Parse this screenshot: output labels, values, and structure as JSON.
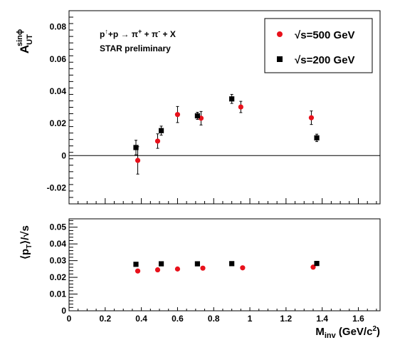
{
  "colors": {
    "s500": "#e8111b",
    "s200": "#000000",
    "axis": "#000000"
  },
  "chart_data": [
    {
      "type": "scatter",
      "ylabel": "A_UT^sinϕ",
      "ylim": [
        -0.03,
        0.09
      ],
      "xlim": [
        0,
        1.72
      ],
      "yticks_labeled": [
        "-0.02",
        "0",
        "0.02",
        "0.04",
        "0.06",
        "0.08"
      ],
      "yticks": [
        -0.02,
        0,
        0.02,
        0.04,
        0.06,
        0.08
      ],
      "zero_line": true,
      "grid": false,
      "annotations": {
        "reaction": "p↑+p → π⁺ + π⁻ + X",
        "status": "STAR preliminary"
      },
      "legend": {
        "position": "top-right",
        "entries": [
          {
            "label": "√s=500 GeV",
            "marker": "circle",
            "series": "s500"
          },
          {
            "label": "√s=200 GeV",
            "marker": "square",
            "series": "s200"
          }
        ]
      },
      "series": [
        {
          "name": "√s=500 GeV",
          "key": "s500",
          "marker": "circle",
          "points": [
            {
              "x": 0.38,
              "y": -0.003,
              "err": 0.0085
            },
            {
              "x": 0.49,
              "y": 0.009,
              "err": 0.0045
            },
            {
              "x": 0.6,
              "y": 0.0255,
              "err": 0.005
            },
            {
              "x": 0.73,
              "y": 0.0232,
              "err": 0.0042
            },
            {
              "x": 0.95,
              "y": 0.0302,
              "err": 0.0035
            },
            {
              "x": 1.34,
              "y": 0.0235,
              "err": 0.0042
            }
          ]
        },
        {
          "name": "√s=200 GeV",
          "key": "s200",
          "marker": "square",
          "points": [
            {
              "x": 0.37,
              "y": 0.005,
              "err": 0.0045
            },
            {
              "x": 0.51,
              "y": 0.0155,
              "err": 0.0028
            },
            {
              "x": 0.71,
              "y": 0.0247,
              "err": 0.0022
            },
            {
              "x": 0.9,
              "y": 0.0352,
              "err": 0.0028
            },
            {
              "x": 1.37,
              "y": 0.011,
              "err": 0.0023
            }
          ]
        }
      ]
    },
    {
      "type": "scatter",
      "ylabel": "⟨p_T⟩/√s",
      "xlabel": "M_inv (GeV/c²)",
      "ylim": [
        0,
        0.055
      ],
      "xlim": [
        0,
        1.72
      ],
      "yticks_labeled": [
        "0",
        "0.01",
        "0.02",
        "0.03",
        "0.04",
        "0.05"
      ],
      "yticks": [
        0,
        0.01,
        0.02,
        0.03,
        0.04,
        0.05
      ],
      "xticks_labeled": [
        "0",
        "0.2",
        "0.4",
        "0.6",
        "0.8",
        "1",
        "1.2",
        "1.4",
        "1.6"
      ],
      "xticks": [
        0,
        0.2,
        0.4,
        0.6,
        0.8,
        1.0,
        1.2,
        1.4,
        1.6
      ],
      "grid": false,
      "series": [
        {
          "name": "√s=500 GeV",
          "key": "s500",
          "marker": "circle",
          "points": [
            {
              "x": 0.38,
              "y": 0.0238
            },
            {
              "x": 0.49,
              "y": 0.0245
            },
            {
              "x": 0.6,
              "y": 0.025
            },
            {
              "x": 0.74,
              "y": 0.0255
            },
            {
              "x": 0.96,
              "y": 0.0257
            },
            {
              "x": 1.35,
              "y": 0.0261
            }
          ]
        },
        {
          "name": "√s=200 GeV",
          "key": "s200",
          "marker": "square",
          "points": [
            {
              "x": 0.37,
              "y": 0.0278
            },
            {
              "x": 0.51,
              "y": 0.0281
            },
            {
              "x": 0.71,
              "y": 0.0281
            },
            {
              "x": 0.9,
              "y": 0.0282
            },
            {
              "x": 1.37,
              "y": 0.0283
            }
          ]
        }
      ]
    }
  ]
}
